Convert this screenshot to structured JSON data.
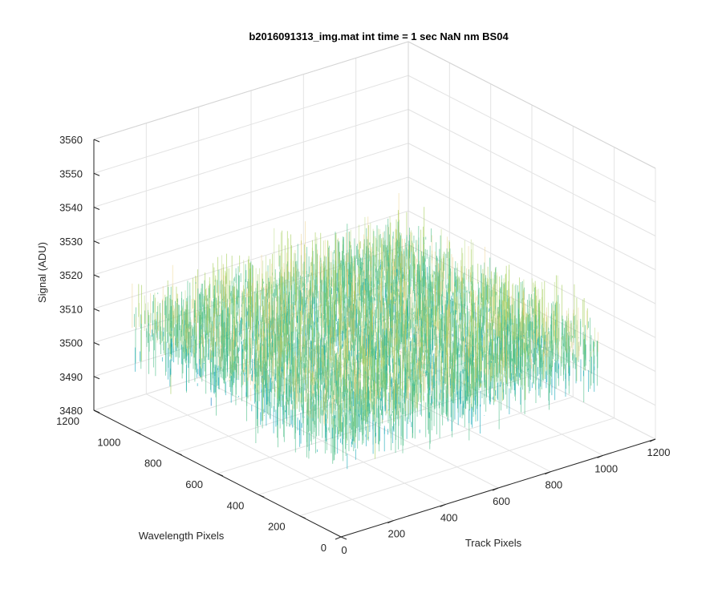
{
  "chart_data": {
    "type": "surface",
    "title": "b2016091313_img.mat int time = 1 sec  NaN nm BS04",
    "xlabel": "Track Pixels",
    "ylabel": "Wavelength Pixels",
    "zlabel": "Signal (ADU)",
    "xlim": [
      0,
      1200
    ],
    "ylim": [
      0,
      1200
    ],
    "zlim": [
      3480,
      3560
    ],
    "x_ticks": [
      "0",
      "200",
      "400",
      "600",
      "800",
      "1000",
      "1200"
    ],
    "y_ticks": [
      "0",
      "200",
      "400",
      "600",
      "800",
      "1000",
      "1200"
    ],
    "z_ticks": [
      "3480",
      "3490",
      "3500",
      "3510",
      "3520",
      "3530",
      "3540",
      "3550",
      "3560"
    ],
    "surface_extent": {
      "x": [
        0,
        1024
      ],
      "y": [
        0,
        1024
      ]
    },
    "surface_mean": 3510,
    "surface_noise_range": [
      3485,
      3545
    ],
    "colormap": [
      "#0072bd",
      "#14a7b8",
      "#4fbf8a",
      "#a6cf5c",
      "#e8c56a"
    ],
    "grid": true
  }
}
